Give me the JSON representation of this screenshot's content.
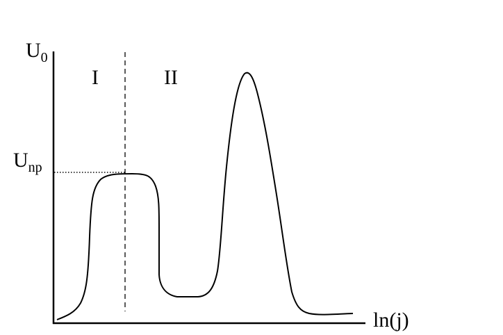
{
  "axes": {
    "y_label": {
      "main": "U",
      "sub": "0"
    },
    "x_label": "ln(j)",
    "reference_label": {
      "main": "U",
      "sub": "np"
    }
  },
  "regions": [
    "I",
    "II"
  ]
}
